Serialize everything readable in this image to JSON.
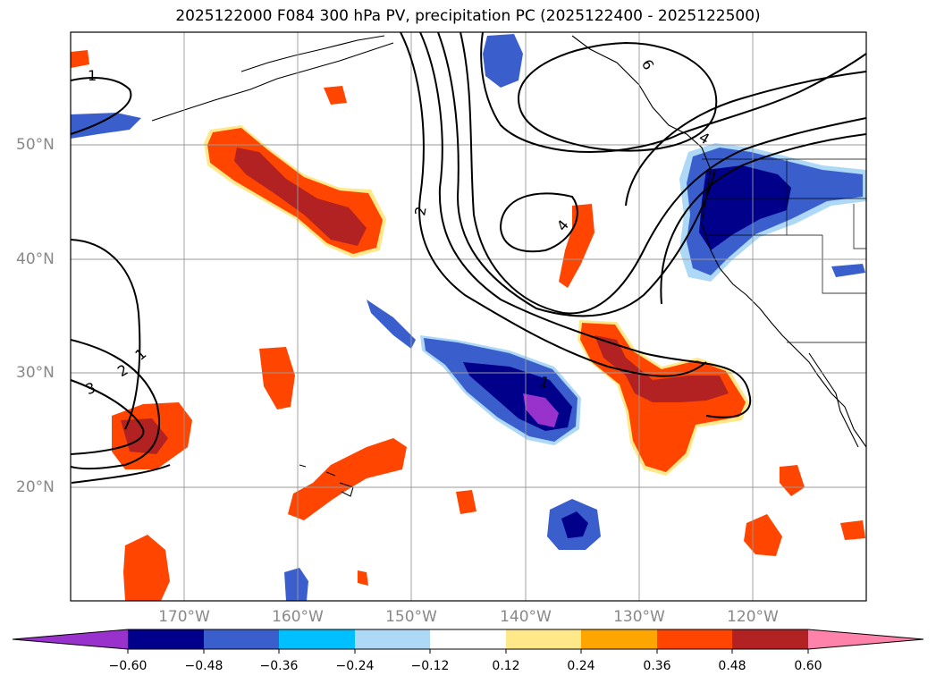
{
  "title": "2025122000 F084 300 hPa PV, precipitation PC (2025122400 - 2025122500)",
  "map": {
    "lon_labels": [
      "170°W",
      "160°W",
      "150°W",
      "140°W",
      "130°W",
      "120°W"
    ],
    "lat_labels": [
      "50°N",
      "40°N",
      "30°N",
      "20°N"
    ],
    "contour_labels": [
      "1",
      "6",
      "2",
      "4",
      "1",
      "2",
      "3",
      "1",
      "4"
    ],
    "colors": {
      "neg_060": "#9932cc",
      "neg_048": "#00008b",
      "neg_036": "#3a5fcd",
      "neg_024": "#00bfff",
      "neg_012": "#add8f6",
      "pos_012": "#ffe88a",
      "pos_024": "#ffa500",
      "pos_036": "#ff4500",
      "pos_048": "#b22222",
      "pos_060": "#ff82ab"
    }
  },
  "colorbar": {
    "ticks": [
      "−0.60",
      "−0.48",
      "−0.36",
      "−0.24",
      "−0.12",
      "0.12",
      "0.24",
      "0.36",
      "0.48",
      "0.60"
    ],
    "colors": [
      "#9932cc",
      "#00008b",
      "#3a5fcd",
      "#00bfff",
      "#add8f6",
      "#ffffff",
      "#ffe88a",
      "#ffa500",
      "#ff4500",
      "#b22222",
      "#ff82ab"
    ]
  }
}
